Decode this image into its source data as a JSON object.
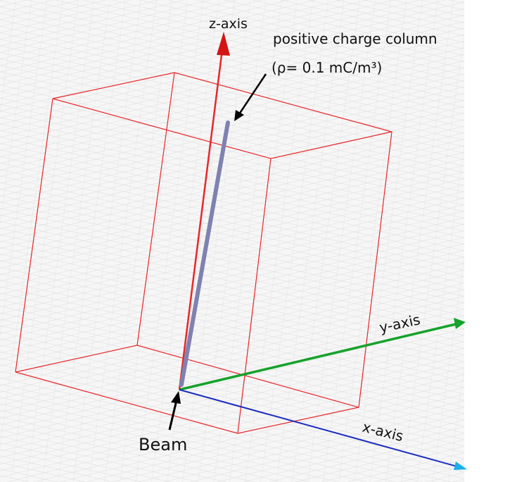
{
  "labels": {
    "z_axis": "z-axis",
    "charge_column": {
      "line1": "positive charge column",
      "line2": "(ρ= 0.1 mC/m³)"
    },
    "y_axis": "y-axis",
    "x_axis": "x-axis",
    "beam": "Beam"
  }
}
